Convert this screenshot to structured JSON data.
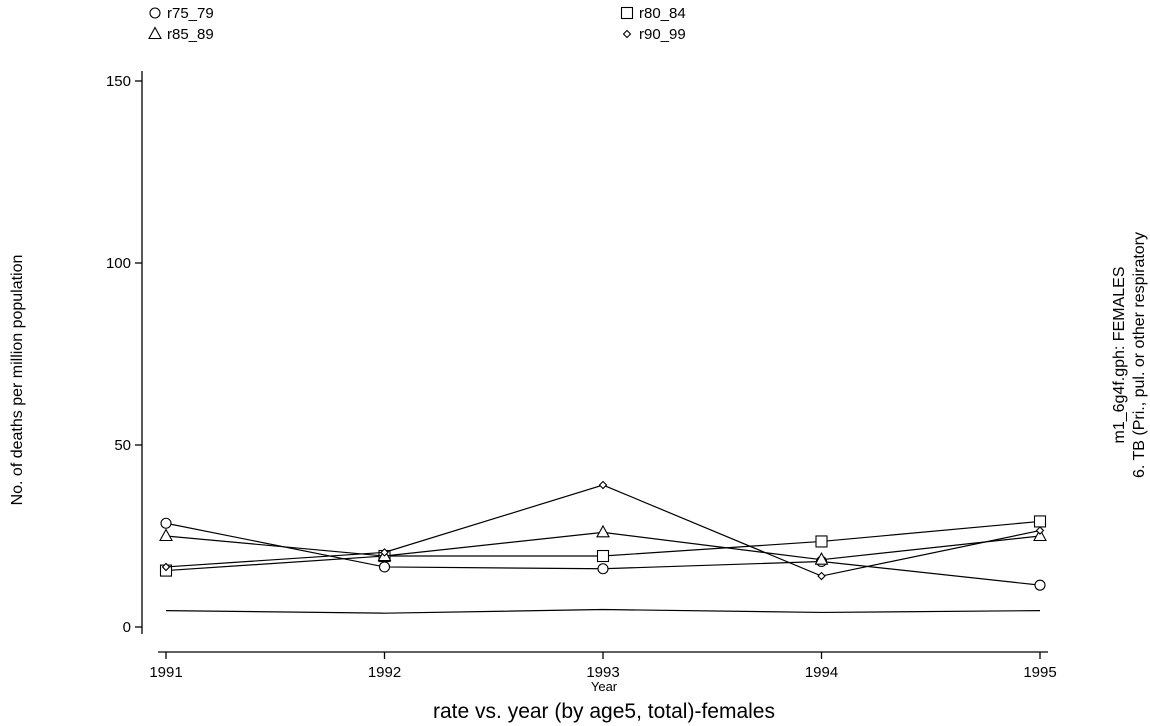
{
  "chart_data": {
    "type": "line",
    "title": "rate vs. year (by age5, total)-females",
    "xlabel": "Year",
    "ylabel": "No. of deaths per million population",
    "side_text": [
      "m1_6g4f.gph: FEMALES",
      "6.  TB (Pri., pul. or other respiratory"
    ],
    "x": [
      1991,
      1992,
      1993,
      1994,
      1995
    ],
    "x_tick_labels": [
      "1991",
      "1992",
      "1993",
      "1994",
      "1995"
    ],
    "y_ticks": [
      0,
      50,
      100,
      150
    ],
    "y_tick_labels": [
      "0",
      "50",
      "100",
      "150"
    ],
    "xlim": [
      1991,
      1995
    ],
    "ylim": [
      0,
      150
    ],
    "grid": false,
    "legend_position": "top",
    "series": [
      {
        "name": "r75_79",
        "marker": "circle",
        "values": [
          28.5,
          16.5,
          16,
          18,
          11.5
        ]
      },
      {
        "name": "r80_84",
        "marker": "square",
        "values": [
          15.5,
          19.5,
          19.5,
          23.5,
          29
        ]
      },
      {
        "name": "r85_89",
        "marker": "triangle",
        "values": [
          25,
          19.5,
          26,
          18.5,
          25
        ]
      },
      {
        "name": "r90_99",
        "marker": "diamond",
        "values": [
          16.5,
          20.5,
          39,
          14,
          26.5
        ]
      },
      {
        "values": [
          4.5,
          3.8,
          4.8,
          4,
          4.5
        ]
      }
    ]
  }
}
